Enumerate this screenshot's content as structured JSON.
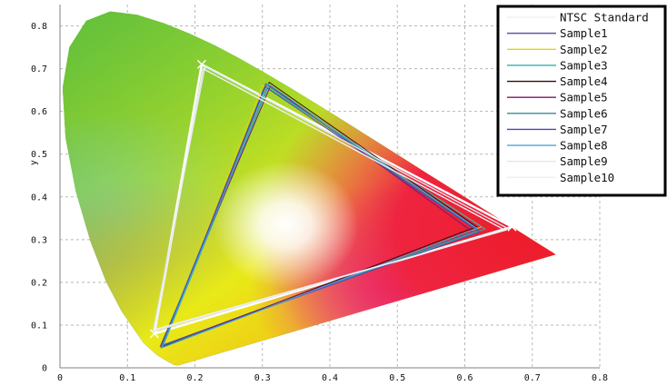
{
  "chart_data": {
    "type": "scatter",
    "title": "",
    "xlabel": "",
    "ylabel": "y",
    "xlim": [
      0,
      0.8
    ],
    "ylim": [
      0,
      0.85
    ],
    "x_ticks": [
      0,
      0.1,
      0.2,
      0.3,
      0.4,
      0.5,
      0.6,
      0.7,
      0.8
    ],
    "x_tick_labels": [
      "0",
      "0.1",
      "0.2",
      "0.3",
      "0.4",
      "0.5",
      "0.6",
      "0.7",
      "0.8"
    ],
    "y_ticks": [
      0,
      0.1,
      0.2,
      0.3,
      0.4,
      0.5,
      0.6,
      0.7,
      0.8
    ],
    "y_tick_labels": [
      "0",
      "0.1",
      "0.2",
      "0.3",
      "0.4",
      "0.5",
      "0.6",
      "0.7",
      "0.8"
    ],
    "grid": true,
    "legend_position": "top-right",
    "background": "CIE 1931 chromaticity diagram (horseshoe locus)",
    "locus": [
      [
        0.1741,
        0.005
      ],
      [
        0.1714,
        0.007
      ],
      [
        0.1689,
        0.0069
      ],
      [
        0.1644,
        0.0109
      ],
      [
        0.1566,
        0.0177
      ],
      [
        0.144,
        0.0297
      ],
      [
        0.1241,
        0.0578
      ],
      [
        0.0913,
        0.1327
      ],
      [
        0.0687,
        0.2007
      ],
      [
        0.0454,
        0.295
      ],
      [
        0.0235,
        0.4127
      ],
      [
        0.0082,
        0.5384
      ],
      [
        0.0039,
        0.6548
      ],
      [
        0.0139,
        0.7502
      ],
      [
        0.0389,
        0.812
      ],
      [
        0.0743,
        0.8338
      ],
      [
        0.1142,
        0.8262
      ],
      [
        0.1547,
        0.8059
      ],
      [
        0.1929,
        0.7816
      ],
      [
        0.2296,
        0.7543
      ],
      [
        0.2658,
        0.7243
      ],
      [
        0.3016,
        0.6923
      ],
      [
        0.3373,
        0.6589
      ],
      [
        0.3731,
        0.6245
      ],
      [
        0.4087,
        0.5896
      ],
      [
        0.4441,
        0.5547
      ],
      [
        0.4788,
        0.5202
      ],
      [
        0.5125,
        0.4866
      ],
      [
        0.5448,
        0.4544
      ],
      [
        0.5752,
        0.4242
      ],
      [
        0.6029,
        0.3965
      ],
      [
        0.627,
        0.3725
      ],
      [
        0.6482,
        0.3514
      ],
      [
        0.6658,
        0.334
      ],
      [
        0.6801,
        0.3197
      ],
      [
        0.6915,
        0.3083
      ],
      [
        0.7006,
        0.2993
      ],
      [
        0.7079,
        0.292
      ],
      [
        0.714,
        0.2859
      ],
      [
        0.719,
        0.2809
      ],
      [
        0.723,
        0.277
      ],
      [
        0.726,
        0.274
      ],
      [
        0.7283,
        0.2717
      ],
      [
        0.73,
        0.27
      ],
      [
        0.7347,
        0.2653
      ]
    ],
    "series": [
      {
        "name": "NTSC Standard",
        "color": "#ffffff",
        "width": 2.4,
        "markers": true,
        "points": [
          [
            0.67,
            0.33
          ],
          [
            0.21,
            0.71
          ],
          [
            0.14,
            0.08
          ]
        ]
      },
      {
        "name": "Sample1",
        "color": "#5a5aa0",
        "width": 1,
        "points": [
          [
            0.615,
            0.325
          ],
          [
            0.305,
            0.665
          ],
          [
            0.15,
            0.048
          ]
        ]
      },
      {
        "name": "Sample2",
        "color": "#e8d200",
        "width": 1,
        "points": [
          [
            0.625,
            0.33
          ],
          [
            0.3,
            0.66
          ],
          [
            0.152,
            0.05
          ]
        ]
      },
      {
        "name": "Sample3",
        "color": "#30b0b0",
        "width": 1,
        "points": [
          [
            0.63,
            0.325
          ],
          [
            0.308,
            0.655
          ],
          [
            0.153,
            0.052
          ]
        ]
      },
      {
        "name": "Sample4",
        "color": "#400808",
        "width": 1,
        "points": [
          [
            0.617,
            0.33
          ],
          [
            0.31,
            0.668
          ],
          [
            0.151,
            0.049
          ]
        ]
      },
      {
        "name": "Sample5",
        "color": "#7a1a6a",
        "width": 1,
        "points": [
          [
            0.61,
            0.32
          ],
          [
            0.312,
            0.66
          ],
          [
            0.149,
            0.051
          ]
        ]
      },
      {
        "name": "Sample6",
        "color": "#3a8a9a",
        "width": 1,
        "points": [
          [
            0.62,
            0.322
          ],
          [
            0.306,
            0.662
          ],
          [
            0.15,
            0.05
          ]
        ]
      },
      {
        "name": "Sample7",
        "color": "#4848b8",
        "width": 1,
        "points": [
          [
            0.622,
            0.318
          ],
          [
            0.304,
            0.658
          ],
          [
            0.152,
            0.053
          ]
        ]
      },
      {
        "name": "Sample8",
        "color": "#4aa8d8",
        "width": 1,
        "points": [
          [
            0.618,
            0.326
          ],
          [
            0.309,
            0.664
          ],
          [
            0.151,
            0.047
          ]
        ]
      },
      {
        "name": "Sample9",
        "color": "#dde6f2",
        "width": 1.4,
        "points": [
          [
            0.665,
            0.325
          ],
          [
            0.215,
            0.705
          ],
          [
            0.138,
            0.085
          ]
        ]
      },
      {
        "name": "Sample10",
        "color": "#f2eef2",
        "width": 1.4,
        "points": [
          [
            0.66,
            0.322
          ],
          [
            0.212,
            0.7
          ],
          [
            0.142,
            0.09
          ]
        ]
      }
    ]
  }
}
